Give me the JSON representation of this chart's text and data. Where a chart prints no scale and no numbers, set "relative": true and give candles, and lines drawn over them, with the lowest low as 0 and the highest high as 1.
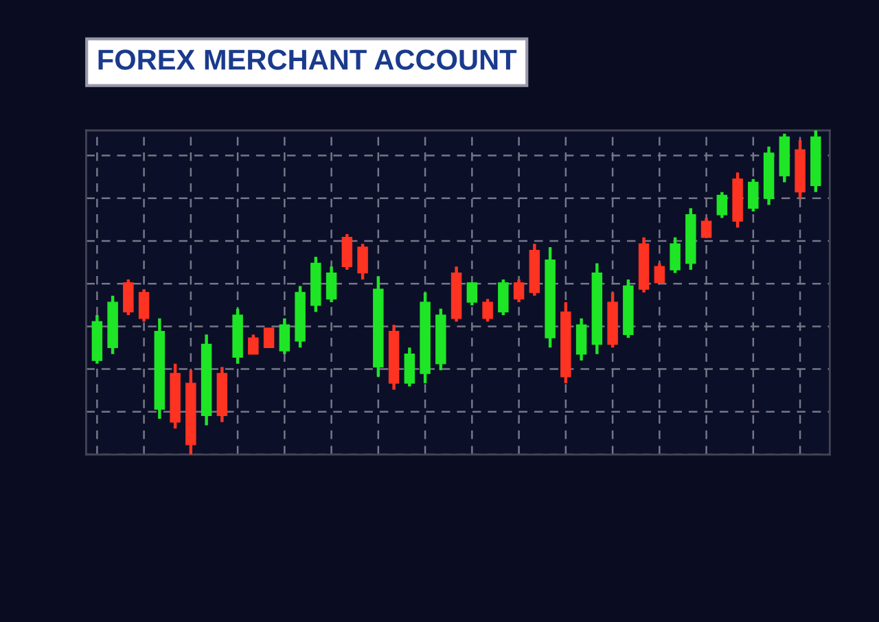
{
  "chart_data": {
    "type": "candlestick",
    "title": "FOREX MERCHANT ACCOUNT",
    "relative": true,
    "grid": true,
    "tick_labels": false,
    "categories": [
      null,
      null,
      null,
      null,
      null,
      null,
      null,
      null,
      null,
      null,
      null,
      null,
      null,
      null,
      null,
      null,
      null,
      null,
      null,
      null,
      null,
      null,
      null,
      null,
      null,
      null,
      null,
      null,
      null,
      null,
      null,
      null,
      null,
      null,
      null,
      null,
      null,
      null,
      null,
      null,
      null,
      null,
      null,
      null,
      null,
      null,
      null
    ],
    "ohlc": [
      [
        0.29,
        0.43,
        0.28,
        0.41
      ],
      [
        0.33,
        0.49,
        0.31,
        0.47
      ],
      [
        0.53,
        0.54,
        0.43,
        0.44
      ],
      [
        0.5,
        0.51,
        0.41,
        0.42
      ],
      [
        0.14,
        0.42,
        0.11,
        0.38
      ],
      [
        0.25,
        0.28,
        0.08,
        0.1
      ],
      [
        0.22,
        0.26,
        0,
        0.03
      ],
      [
        0.12,
        0.37,
        0.09,
        0.34
      ],
      [
        0.25,
        0.27,
        0.1,
        0.12
      ],
      [
        0.3,
        0.45,
        0.28,
        0.43
      ],
      [
        0.36,
        0.37,
        0.31,
        0.31
      ],
      [
        0.39,
        0.39,
        0.33,
        0.33
      ],
      [
        0.32,
        0.42,
        0.31,
        0.4
      ],
      [
        0.35,
        0.52,
        0.33,
        0.5
      ],
      [
        0.46,
        0.61,
        0.44,
        0.59
      ],
      [
        0.48,
        0.58,
        0.47,
        0.56
      ],
      [
        0.67,
        0.68,
        0.57,
        0.58
      ],
      [
        0.64,
        0.65,
        0.54,
        0.56
      ],
      [
        0.27,
        0.55,
        0.24,
        0.51
      ],
      [
        0.38,
        0.4,
        0.2,
        0.22
      ],
      [
        0.22,
        0.33,
        0.21,
        0.31
      ],
      [
        0.25,
        0.5,
        0.22,
        0.47
      ],
      [
        0.28,
        0.45,
        0.26,
        0.43
      ],
      [
        0.56,
        0.58,
        0.41,
        0.42
      ],
      [
        0.47,
        0.53,
        0.46,
        0.53
      ],
      [
        0.47,
        0.48,
        0.41,
        0.42
      ],
      [
        0.44,
        0.54,
        0.43,
        0.53
      ],
      [
        0.53,
        0.54,
        0.47,
        0.48
      ],
      [
        0.63,
        0.65,
        0.49,
        0.5
      ],
      [
        0.36,
        0.64,
        0.33,
        0.6
      ],
      [
        0.44,
        0.47,
        0.22,
        0.24
      ],
      [
        0.31,
        0.42,
        0.29,
        0.4
      ],
      [
        0.34,
        0.59,
        0.31,
        0.56
      ],
      [
        0.47,
        0.5,
        0.33,
        0.34
      ],
      [
        0.37,
        0.54,
        0.36,
        0.52
      ],
      [
        0.65,
        0.67,
        0.5,
        0.51
      ],
      [
        0.58,
        0.59,
        0.53,
        0.53
      ],
      [
        0.57,
        0.67,
        0.56,
        0.65
      ],
      [
        0.59,
        0.76,
        0.57,
        0.74
      ],
      [
        0.72,
        0.73,
        0.67,
        0.67
      ],
      [
        0.74,
        0.81,
        0.73,
        0.8
      ],
      [
        0.85,
        0.87,
        0.7,
        0.72
      ],
      [
        0.76,
        0.85,
        0.75,
        0.84
      ],
      [
        0.79,
        0.95,
        0.77,
        0.93
      ],
      [
        0.86,
        0.99,
        0.84,
        0.98
      ],
      [
        0.94,
        0.97,
        0.79,
        0.81
      ],
      [
        0.83,
        1,
        0.81,
        0.98
      ]
    ]
  }
}
